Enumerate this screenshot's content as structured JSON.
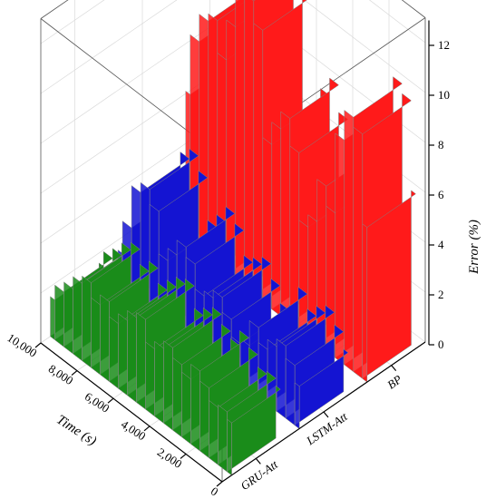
{
  "chart_data": {
    "type": "3d-waterfall",
    "x_axis": {
      "title": "Time (s)",
      "ticks": [
        "0",
        "2,000",
        "4,000",
        "6,000",
        "8,000",
        "10,000"
      ],
      "range": [
        0,
        10000
      ]
    },
    "y_axis": {
      "categories": [
        "GRU-Att",
        "LSTM-Att",
        "BP"
      ]
    },
    "z_axis": {
      "title": "Error (%)",
      "ticks": [
        "0",
        "2",
        "4",
        "6",
        "8",
        "10",
        "12"
      ],
      "range": [
        0,
        12
      ]
    },
    "grid": true,
    "series": [
      {
        "name": "GRU-Att",
        "color": "#1a8c1a",
        "time": [
          0,
          500,
          1000,
          1500,
          2000,
          2500,
          3000,
          3500,
          4000,
          4500,
          5000,
          5500,
          6000,
          6500,
          7000,
          7500,
          8000,
          8500,
          9000,
          9500,
          10000
        ],
        "error": [
          2.1,
          2.4,
          2.3,
          2.8,
          3.2,
          2.6,
          2.9,
          3.3,
          3.0,
          2.7,
          3.6,
          3.4,
          3.0,
          2.6,
          3.2,
          2.8,
          3.4,
          3.1,
          2.6,
          2.2,
          1.6
        ]
      },
      {
        "name": "LSTM-Att",
        "color": "#1414d2",
        "time": [
          0,
          500,
          1000,
          1500,
          2000,
          2500,
          3000,
          3500,
          4000,
          4500,
          5000,
          5500,
          6000,
          6500,
          7000,
          7500,
          8000,
          8500,
          9000,
          9500,
          10000
        ],
        "error": [
          1.7,
          2.4,
          2.9,
          2.6,
          2.2,
          2.8,
          1.8,
          1.6,
          2.3,
          2.9,
          2.6,
          2.4,
          3.4,
          3.8,
          3.2,
          2.7,
          4.4,
          5.0,
          4.6,
          2.9,
          1.6
        ]
      },
      {
        "name": "BP",
        "color": "#ff1a1a",
        "time": [
          0,
          500,
          1000,
          1500,
          2000,
          2500,
          3000,
          3500,
          4000,
          4500,
          5000,
          5500,
          6000,
          6500,
          7000,
          7500,
          8000,
          8500,
          9000,
          9500,
          10000
        ],
        "error": [
          6.2,
          9.8,
          10.2,
          9.0,
          5.8,
          6.6,
          4.9,
          4.4,
          7.1,
          8.2,
          7.5,
          6.6,
          10.9,
          11.8,
          12.0,
          10.2,
          8.6,
          9.9,
          9.6,
          8.5,
          6.1
        ]
      }
    ]
  }
}
